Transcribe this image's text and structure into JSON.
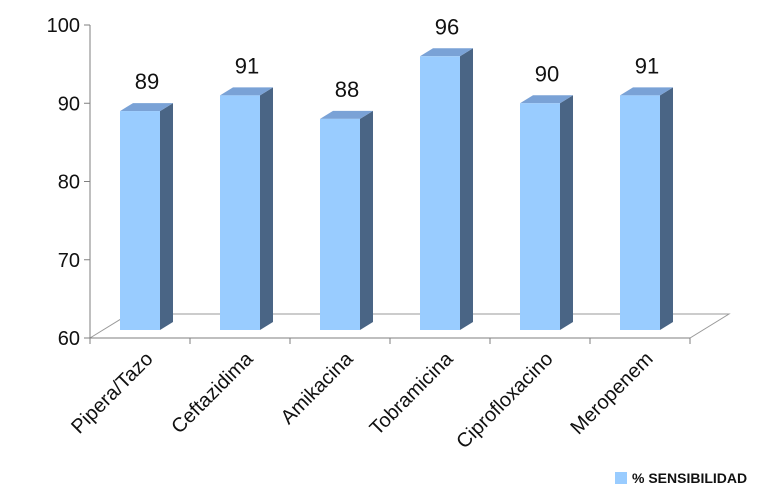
{
  "chart_data": {
    "type": "bar",
    "style": "3d-column",
    "title": "",
    "xlabel": "",
    "ylabel": "",
    "categories": [
      "Pipera/Tazo",
      "Ceftazidima",
      "Amikacina",
      "Tobramicina",
      "Ciprofloxacino",
      "Meropenem"
    ],
    "series": [
      {
        "name": "% SENSIBILIDAD",
        "values": [
          89,
          91,
          88,
          96,
          90,
          91
        ]
      }
    ],
    "ylim": [
      60,
      100
    ],
    "yticks": [
      60,
      70,
      80,
      90,
      100
    ],
    "grid": false,
    "legend": "bottom-right",
    "data_labels": true,
    "colors": {
      "front": "#99ccff",
      "side": "#4a6585",
      "top": "#7aa2d6",
      "axis": "#7f7f7f"
    }
  }
}
